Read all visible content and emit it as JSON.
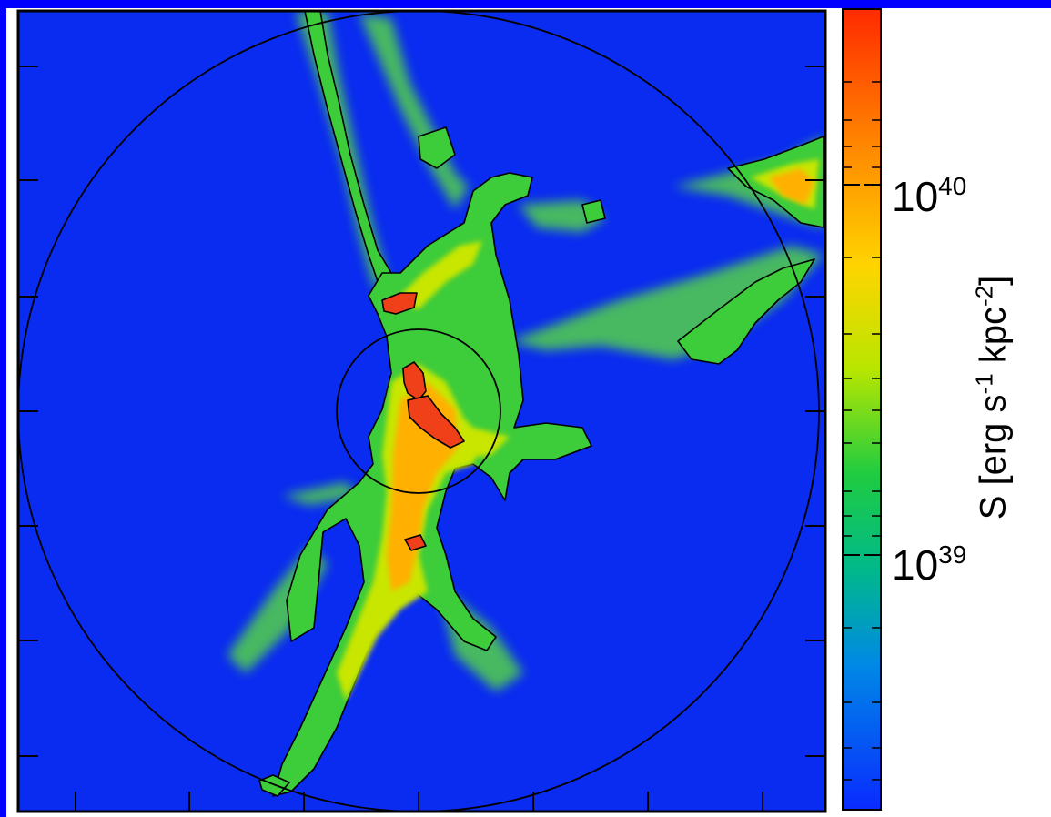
{
  "chart_data": {
    "type": "heatmap",
    "description_of_content": "",
    "colorbar": {
      "scale": "log",
      "ticks": [
        {
          "value": 1e+39,
          "label_base": "10",
          "label_exp": "39"
        },
        {
          "value": 1e+40,
          "label_base": "10",
          "label_exp": "40"
        }
      ],
      "label_prefix": "S [erg s",
      "label_exp1": "-1",
      "label_mid": " kpc",
      "label_exp2": "-2",
      "label_suffix": "]",
      "colors": [
        "#0a2bff",
        "#00b7d6",
        "#00cc55",
        "#aee600",
        "#ffd000",
        "#ff7a00",
        "#ff2200"
      ]
    },
    "overlays": [
      "outer-virial-circle",
      "inner-circle",
      "black-contours"
    ],
    "grid": false
  }
}
